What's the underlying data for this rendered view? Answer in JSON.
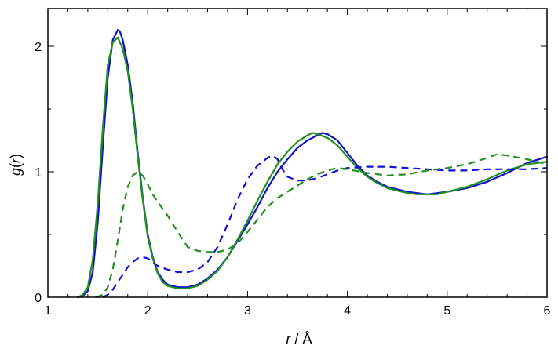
{
  "chart_data": {
    "type": "line",
    "xlabel_var": "r",
    "xlabel_unit": " / Å",
    "ylabel_var": "g",
    "ylabel_open": "(",
    "ylabel_arg": "r",
    "ylabel_close": ")",
    "xlim": [
      1,
      6
    ],
    "ylim": [
      0,
      2.3
    ],
    "xticks": [
      1,
      2,
      3,
      4,
      5,
      6
    ],
    "xtick_labels": [
      "1",
      "2",
      "3",
      "4",
      "5",
      "6"
    ],
    "yticks": [
      0,
      1,
      2
    ],
    "ytick_labels": [
      "0",
      "1",
      "2"
    ],
    "grid": false,
    "legend": "none",
    "series": [
      {
        "color": "#1010d0",
        "style": "solid",
        "x": [
          1.3,
          1.35,
          1.4,
          1.45,
          1.5,
          1.55,
          1.6,
          1.65,
          1.7,
          1.72,
          1.75,
          1.8,
          1.85,
          1.9,
          1.95,
          2.0,
          2.05,
          2.1,
          2.15,
          2.2,
          2.3,
          2.4,
          2.5,
          2.6,
          2.7,
          2.8,
          2.9,
          3.0,
          3.1,
          3.2,
          3.3,
          3.4,
          3.5,
          3.6,
          3.7,
          3.75,
          3.8,
          3.9,
          4.0,
          4.1,
          4.2,
          4.3,
          4.4,
          4.5,
          4.6,
          4.7,
          4.8,
          4.9,
          5.0,
          5.2,
          5.4,
          5.6,
          5.8,
          6.0
        ],
        "y": [
          0.0,
          0.01,
          0.05,
          0.2,
          0.6,
          1.2,
          1.75,
          2.05,
          2.13,
          2.12,
          2.05,
          1.85,
          1.55,
          1.15,
          0.8,
          0.5,
          0.32,
          0.2,
          0.14,
          0.1,
          0.08,
          0.08,
          0.1,
          0.15,
          0.22,
          0.32,
          0.45,
          0.58,
          0.72,
          0.87,
          1.0,
          1.1,
          1.19,
          1.25,
          1.29,
          1.31,
          1.3,
          1.25,
          1.15,
          1.05,
          0.97,
          0.92,
          0.88,
          0.86,
          0.84,
          0.83,
          0.82,
          0.83,
          0.84,
          0.87,
          0.92,
          0.99,
          1.07,
          1.12
        ]
      },
      {
        "color": "#20901e",
        "style": "solid",
        "x": [
          1.3,
          1.35,
          1.4,
          1.45,
          1.5,
          1.55,
          1.6,
          1.65,
          1.7,
          1.75,
          1.8,
          1.85,
          1.9,
          1.95,
          2.0,
          2.05,
          2.1,
          2.15,
          2.2,
          2.3,
          2.4,
          2.5,
          2.6,
          2.7,
          2.8,
          2.9,
          3.0,
          3.1,
          3.2,
          3.3,
          3.4,
          3.5,
          3.6,
          3.65,
          3.7,
          3.8,
          3.9,
          4.0,
          4.1,
          4.2,
          4.3,
          4.4,
          4.5,
          4.6,
          4.7,
          4.8,
          4.9,
          5.0,
          5.2,
          5.4,
          5.6,
          5.8,
          6.0
        ],
        "y": [
          0.0,
          0.02,
          0.08,
          0.3,
          0.75,
          1.35,
          1.85,
          2.03,
          2.07,
          1.98,
          1.8,
          1.5,
          1.12,
          0.78,
          0.48,
          0.31,
          0.19,
          0.12,
          0.09,
          0.07,
          0.07,
          0.09,
          0.14,
          0.21,
          0.32,
          0.46,
          0.61,
          0.77,
          0.92,
          1.06,
          1.16,
          1.24,
          1.29,
          1.31,
          1.3,
          1.27,
          1.21,
          1.12,
          1.03,
          0.96,
          0.91,
          0.87,
          0.85,
          0.83,
          0.82,
          0.82,
          0.82,
          0.84,
          0.88,
          0.94,
          1.01,
          1.06,
          1.08
        ]
      },
      {
        "color": "#1010d0",
        "style": "dashed",
        "x": [
          1.55,
          1.6,
          1.65,
          1.7,
          1.75,
          1.8,
          1.85,
          1.9,
          1.95,
          2.0,
          2.05,
          2.1,
          2.2,
          2.3,
          2.4,
          2.5,
          2.6,
          2.7,
          2.8,
          2.9,
          3.0,
          3.1,
          3.2,
          3.25,
          3.3,
          3.35,
          3.4,
          3.5,
          3.6,
          3.7,
          3.8,
          3.9,
          4.0,
          4.2,
          4.4,
          4.6,
          4.8,
          5.0,
          5.2,
          5.4,
          5.6,
          5.8,
          6.0
        ],
        "y": [
          0.0,
          0.02,
          0.06,
          0.12,
          0.18,
          0.24,
          0.28,
          0.31,
          0.32,
          0.31,
          0.28,
          0.25,
          0.22,
          0.2,
          0.2,
          0.22,
          0.28,
          0.4,
          0.58,
          0.78,
          0.94,
          1.05,
          1.11,
          1.13,
          1.1,
          1.02,
          0.96,
          0.93,
          0.93,
          0.95,
          0.98,
          1.01,
          1.03,
          1.04,
          1.04,
          1.03,
          1.02,
          1.01,
          1.01,
          1.02,
          1.02,
          1.02,
          1.03
        ]
      },
      {
        "color": "#20901e",
        "style": "dashed",
        "x": [
          1.48,
          1.55,
          1.6,
          1.65,
          1.7,
          1.75,
          1.8,
          1.85,
          1.9,
          1.95,
          2.0,
          2.05,
          2.1,
          2.2,
          2.3,
          2.4,
          2.5,
          2.6,
          2.7,
          2.8,
          2.9,
          3.0,
          3.1,
          3.2,
          3.3,
          3.4,
          3.5,
          3.6,
          3.7,
          3.8,
          3.9,
          4.0,
          4.2,
          4.4,
          4.6,
          4.8,
          5.0,
          5.2,
          5.4,
          5.5,
          5.6,
          5.8,
          6.0
        ],
        "y": [
          0.0,
          0.02,
          0.08,
          0.22,
          0.45,
          0.7,
          0.88,
          0.97,
          1.0,
          0.97,
          0.9,
          0.82,
          0.76,
          0.65,
          0.52,
          0.4,
          0.37,
          0.36,
          0.36,
          0.38,
          0.43,
          0.52,
          0.62,
          0.72,
          0.79,
          0.84,
          0.89,
          0.94,
          0.98,
          1.01,
          1.03,
          1.02,
          0.99,
          0.97,
          0.98,
          1.01,
          1.03,
          1.06,
          1.11,
          1.14,
          1.13,
          1.1,
          1.06
        ]
      }
    ]
  }
}
